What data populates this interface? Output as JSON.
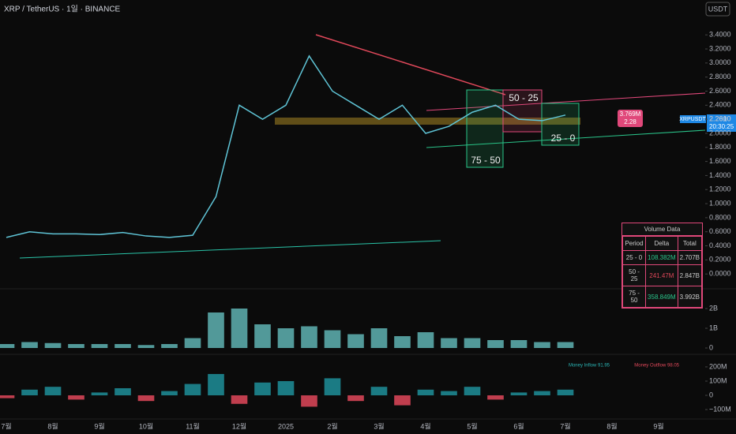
{
  "chart_data": [
    {
      "type": "line",
      "title": "XRP / TetherUS · 1일 · BINANCE",
      "categories": [
        "7월",
        null,
        "8월",
        null,
        "9월",
        null,
        "10월",
        null,
        "11월",
        null,
        "12월",
        null,
        "2025",
        null,
        "2월",
        null,
        "3월",
        null,
        "4월",
        null,
        "5월",
        null,
        "6월",
        null,
        "7월",
        null,
        "8월",
        null,
        "9월",
        null
      ],
      "series": [
        {
          "name": "XRPUSDT",
          "color": "#5fc4d6",
          "values": [
            0.52,
            0.6,
            0.57,
            0.57,
            0.56,
            0.59,
            0.54,
            0.52,
            0.55,
            1.1,
            2.4,
            2.2,
            2.4,
            3.1,
            2.6,
            2.4,
            2.2,
            2.4,
            2.0,
            2.1,
            2.3,
            2.4,
            2.2,
            2.18,
            2.26,
            null,
            null,
            null,
            null,
            null
          ]
        }
      ],
      "ylim": [
        -0.2,
        3.84
      ],
      "yticks": [
        {
          "value": 0,
          "label": "0.0000"
        },
        {
          "value": 0.2,
          "label": "0.2000"
        },
        {
          "value": 0.4,
          "label": "0.4000"
        },
        {
          "value": 0.6,
          "label": "0.6000"
        },
        {
          "value": 0.8,
          "label": "0.8000"
        },
        {
          "value": 1,
          "label": "1.0000"
        },
        {
          "value": 1.2,
          "label": "1.2000"
        },
        {
          "value": 1.4,
          "label": "1.4000"
        },
        {
          "value": 1.6,
          "label": "1.6000"
        },
        {
          "value": 1.8,
          "label": "1.8000"
        },
        {
          "value": 2,
          "label": "2.0000"
        },
        {
          "value": 2.2,
          "label": "2.2000"
        },
        {
          "value": 2.4,
          "label": "2.4000"
        },
        {
          "value": 2.6,
          "label": "2.6000"
        },
        {
          "value": 2.8,
          "label": "2.8000"
        },
        {
          "value": 3,
          "label": "3.0000"
        },
        {
          "value": 3.2,
          "label": "3.2000"
        },
        {
          "value": 3.4,
          "label": "3.4000"
        }
      ],
      "grid": false,
      "annotations": [
        "50 - 25",
        "75 - 50",
        "25 - 0"
      ]
    },
    {
      "type": "bar",
      "color": "#5fb3b3",
      "values": [
        0.2,
        0.3,
        0.25,
        0.2,
        0.2,
        0.2,
        0.15,
        0.2,
        0.5,
        1.8,
        2.0,
        1.2,
        1.0,
        1.1,
        0.9,
        0.7,
        1.0,
        0.6,
        0.8,
        0.5,
        0.5,
        0.4,
        0.4,
        0.3,
        0.3,
        null,
        null,
        null,
        null,
        null
      ],
      "ylim": [
        -0.28,
        2.92
      ],
      "yticks": [
        0,
        {
          "value": 1,
          "label": "1B"
        },
        {
          "value": 2,
          "label": "2B"
        }
      ]
    },
    {
      "type": "bar",
      "color_up": "#1f8f9a",
      "color_down": "#e0485a",
      "values": [
        -20,
        40,
        60,
        -30,
        20,
        50,
        -40,
        30,
        80,
        150,
        -60,
        90,
        100,
        -80,
        120,
        -40,
        60,
        -70,
        40,
        30,
        60,
        -30,
        20,
        30,
        40,
        null,
        null,
        null,
        null,
        null
      ],
      "ylim": [
        -161,
        283
      ],
      "yticks": [
        {
          "value": -100,
          "label": "−100M"
        },
        0,
        {
          "value": 100,
          "label": "100M"
        },
        {
          "value": 200,
          "label": "200M"
        }
      ],
      "legend": [
        "Money Inflow 91.95",
        "Money Outflow 98.05"
      ]
    }
  ],
  "tags": {
    "currency": "USDT",
    "symbol": "XRPUSDT",
    "last": "2.2610",
    "countdown": "20:30:25",
    "flow": "3.769M",
    "flow_price": "2.28"
  },
  "volume_table": {
    "title": "Volume Data",
    "header": [
      "Period",
      "Delta",
      "Total"
    ],
    "rows": [
      [
        "25 - 0",
        "108.382M",
        "2.707B"
      ],
      [
        "50 - 25",
        "241.47M",
        "2.847B"
      ],
      [
        "75 - 50",
        "358.849M",
        "3.992B"
      ]
    ]
  }
}
